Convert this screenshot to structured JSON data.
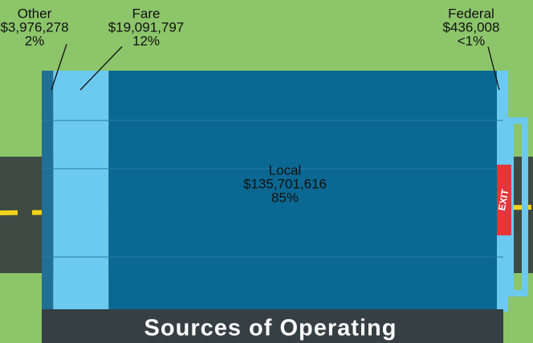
{
  "chart_data": {
    "type": "bar",
    "title": "Sources of Operating",
    "categories": [
      "Other",
      "Fare",
      "Local",
      "Federal"
    ],
    "values": [
      3976278,
      19091797,
      135701616,
      436008
    ],
    "value_labels": [
      "$3,976,278",
      "$19,091,797",
      "$135,701,616",
      "$436,008"
    ],
    "percent_labels": [
      "2%",
      "12%",
      "85%",
      "<1%"
    ],
    "colors": [
      "#1f6f97",
      "#6ccaf0",
      "#0b6892",
      "#6ccaf0"
    ],
    "exit_sign": "EXIT"
  }
}
